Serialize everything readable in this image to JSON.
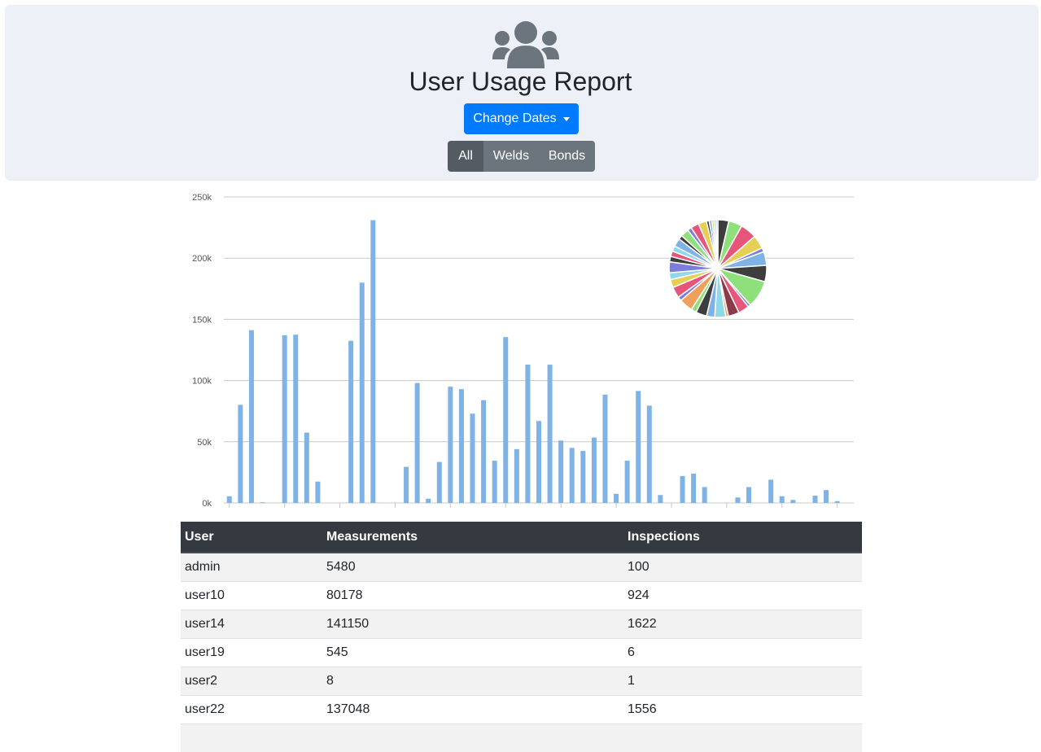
{
  "header": {
    "title": "User Usage Report",
    "change_dates_label": "Change Dates",
    "icon": "users-icon",
    "filters": [
      {
        "label": "All",
        "active": true
      },
      {
        "label": "Welds",
        "active": false
      },
      {
        "label": "Bonds",
        "active": false
      }
    ]
  },
  "colors": {
    "primary": "#007bff",
    "bar": "#7fb3e6",
    "header_bg": "#edf0f7",
    "table_head": "#343a40"
  },
  "chart_data": [
    {
      "type": "bar",
      "title": "",
      "xlabel": "",
      "ylabel": "",
      "ylim": [
        0,
        250000
      ],
      "yticks": [
        "0k",
        "50k",
        "100k",
        "150k",
        "200k",
        "250k"
      ],
      "grid": true,
      "values": [
        5480,
        80178,
        141150,
        545,
        8,
        137048,
        137500,
        57500,
        17500,
        0,
        0,
        132500,
        180000,
        231000,
        0,
        0,
        29500,
        98000,
        3500,
        33500,
        95000,
        93000,
        73000,
        84000,
        34500,
        135500,
        44000,
        113000,
        67000,
        113000,
        51000,
        45000,
        42500,
        53500,
        88500,
        7500,
        34500,
        91500,
        79500,
        6500,
        0,
        22000,
        24000,
        13000,
        0,
        0,
        4500,
        13000,
        0,
        19000,
        5500,
        2500,
        0,
        6000,
        10500,
        1500,
        0
      ]
    },
    {
      "type": "pie",
      "slices": [
        {
          "value": 4,
          "color": "#3d3d3d"
        },
        {
          "value": 5,
          "color": "#8ee07a"
        },
        {
          "value": 6,
          "color": "#e8557a"
        },
        {
          "value": 5,
          "color": "#e6cf55"
        },
        {
          "value": 1.5,
          "color": "#7d7ddc"
        },
        {
          "value": 5,
          "color": "#7fb3e6"
        },
        {
          "value": 6,
          "color": "#3d3d3d"
        },
        {
          "value": 10,
          "color": "#8ee07a"
        },
        {
          "value": 1,
          "color": "#7d7ddc"
        },
        {
          "value": 4,
          "color": "#e8557a"
        },
        {
          "value": 4,
          "color": "#8b3a4a"
        },
        {
          "value": 1,
          "color": "#f0a05a"
        },
        {
          "value": 4,
          "color": "#8fd8e8"
        },
        {
          "value": 3,
          "color": "#7fb3e6"
        },
        {
          "value": 4,
          "color": "#3d3d3d"
        },
        {
          "value": 2,
          "color": "#8ee07a"
        },
        {
          "value": 5,
          "color": "#f0a05a"
        },
        {
          "value": 1.5,
          "color": "#7d7ddc"
        },
        {
          "value": 4,
          "color": "#e8557a"
        },
        {
          "value": 3,
          "color": "#e6cf55"
        },
        {
          "value": 2.5,
          "color": "#8fd8e8"
        },
        {
          "value": 4,
          "color": "#7d7ddc"
        },
        {
          "value": 2,
          "color": "#3d3d3d"
        },
        {
          "value": 2,
          "color": "#e8557a"
        },
        {
          "value": 2,
          "color": "#8fd8e8"
        },
        {
          "value": 3,
          "color": "#7fb3e6"
        },
        {
          "value": 1.5,
          "color": "#3d3d3d"
        },
        {
          "value": 3,
          "color": "#8ee07a"
        },
        {
          "value": 1.5,
          "color": "#7d7ddc"
        },
        {
          "value": 3,
          "color": "#e8557a"
        },
        {
          "value": 3,
          "color": "#e6cf55"
        },
        {
          "value": 1,
          "color": "#3d3d3d"
        },
        {
          "value": 1,
          "color": "#7fb3e6"
        },
        {
          "value": 0.8,
          "color": "#e6cf55"
        },
        {
          "value": 0.8,
          "color": "#8fd8e8"
        },
        {
          "value": 0.6,
          "color": "#7d7ddc"
        }
      ]
    }
  ],
  "table": {
    "columns": [
      "User",
      "Measurements",
      "Inspections"
    ],
    "rows": [
      [
        "admin",
        "5480",
        "100"
      ],
      [
        "user10",
        "80178",
        "924"
      ],
      [
        "user14",
        "141150",
        "1622"
      ],
      [
        "user19",
        "545",
        "6"
      ],
      [
        "user2",
        "8",
        "1"
      ],
      [
        "user22",
        "137048",
        "1556"
      ],
      [
        "",
        "",
        ""
      ]
    ]
  }
}
